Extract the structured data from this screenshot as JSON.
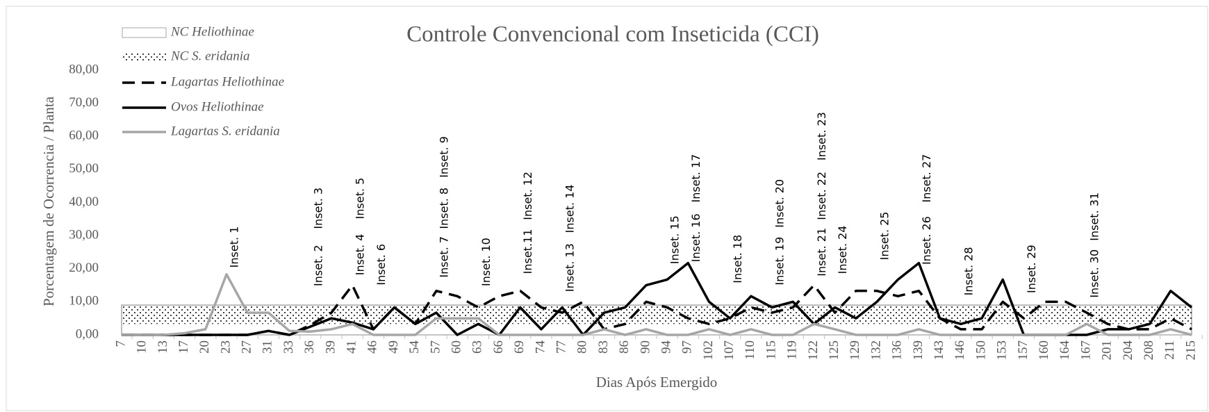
{
  "chart_data": {
    "type": "line",
    "title": "Controle Convencional com Inseticida (CCI)",
    "x_label": "Dias Após Emergido",
    "y_label": "Porcentagem de Ocorrencia / Planta",
    "categories": [
      7,
      10,
      13,
      17,
      20,
      23,
      27,
      31,
      33,
      36,
      39,
      41,
      46,
      49,
      54,
      57,
      60,
      63,
      66,
      69,
      74,
      77,
      80,
      83,
      86,
      90,
      94,
      97,
      102,
      107,
      110,
      115,
      119,
      122,
      125,
      129,
      132,
      136,
      139,
      143,
      146,
      150,
      153,
      157,
      160,
      164,
      167,
      201,
      204,
      208,
      211,
      215
    ],
    "ylim": [
      0,
      80
    ],
    "yticks": [
      {
        "value": 0,
        "label": "0,00"
      },
      {
        "value": 10,
        "label": "10,00"
      },
      {
        "value": 20,
        "label": "20,00"
      },
      {
        "value": 30,
        "label": "30,00"
      },
      {
        "value": 40,
        "label": "40,00"
      },
      {
        "value": 50,
        "label": "50,00"
      },
      {
        "value": 60,
        "label": "60,00"
      },
      {
        "value": 70,
        "label": "70,00"
      },
      {
        "value": 80,
        "label": "80,00"
      }
    ],
    "grid": false,
    "bands": [
      {
        "name": "NC Heliothinae",
        "range": [
          0,
          9
        ],
        "color": "#a6a6a6",
        "pattern": "none"
      },
      {
        "name": "NC S. eridania",
        "range": [
          3.3,
          9
        ],
        "color": "#000000",
        "pattern": "dots"
      }
    ],
    "series": [
      {
        "name": "Lagartas Heliothinae",
        "color": "#000000",
        "dash": "dashed",
        "values": [
          0,
          0,
          0,
          0,
          0,
          0,
          0,
          1.2,
          0,
          3,
          6.7,
          15,
          1.7,
          8.3,
          3.3,
          13.3,
          11.7,
          8.3,
          11.7,
          13.3,
          8.3,
          6.7,
          10,
          1.7,
          3.3,
          10,
          8.3,
          5,
          3.3,
          5,
          8.3,
          6.7,
          8.3,
          15,
          6.7,
          13.3,
          13.3,
          11.7,
          13.3,
          5,
          1.7,
          1.7,
          10,
          5,
          10,
          10,
          6.7,
          3.3,
          1.7,
          1.7,
          5,
          1.7
        ]
      },
      {
        "name": "Ovos Heliothinae",
        "color": "#000000",
        "dash": "solid",
        "values": [
          0,
          0,
          0,
          0,
          0,
          0,
          0,
          1.2,
          0,
          2.5,
          5,
          3.7,
          1.7,
          8.3,
          3.3,
          6.7,
          0,
          3.3,
          0,
          8.3,
          1.7,
          8.3,
          0,
          6.7,
          8.3,
          15,
          16.7,
          21.7,
          10,
          5,
          11.7,
          8.3,
          10,
          3.3,
          8.3,
          5,
          10,
          16.7,
          21.7,
          5,
          3.3,
          5,
          16.7,
          0,
          0,
          0,
          0,
          1.7,
          1.7,
          3.3,
          13.3,
          8.3
        ]
      },
      {
        "name": "Lagartas S. eridania",
        "color": "#a6a6a6",
        "dash": "solid",
        "values": [
          0,
          0,
          0,
          0.5,
          1.7,
          18.3,
          6.7,
          6.7,
          1.2,
          1,
          1.7,
          3.3,
          0,
          0,
          0,
          5,
          5,
          5,
          0,
          0,
          0,
          0,
          0,
          1.7,
          0,
          1.7,
          0,
          0,
          1.7,
          0,
          1.7,
          0,
          0,
          3.3,
          1.7,
          0,
          0,
          0,
          1.7,
          0,
          0,
          0,
          0,
          0,
          0,
          0,
          3.3,
          0,
          0,
          0,
          1.7,
          0
        ]
      }
    ],
    "annotations": [
      {
        "text": "Inset. 1",
        "x": 23,
        "y": 20.3
      },
      {
        "text": "Inset. 2",
        "x": 36,
        "y": 14.7
      },
      {
        "text": "Inset. 3",
        "x": 36,
        "y": 32
      },
      {
        "text": "Inset. 4",
        "x": 41,
        "y": 18
      },
      {
        "text": "Inset. 5",
        "x": 41,
        "y": 35
      },
      {
        "text": "Inset. 6",
        "x": 46,
        "y": 15
      },
      {
        "text": "Inset. 7",
        "x": 57,
        "y": 17.3
      },
      {
        "text": "Inset. 8",
        "x": 57,
        "y": 32
      },
      {
        "text": "Inset. 9",
        "x": 57,
        "y": 47.5
      },
      {
        "text": "Inset. 10",
        "x": 63,
        "y": 14.7
      },
      {
        "text": "Inset.11",
        "x": 69,
        "y": 18.4
      },
      {
        "text": "Inset. 12",
        "x": 69,
        "y": 34.7
      },
      {
        "text": "Inset. 13",
        "x": 77,
        "y": 13
      },
      {
        "text": "Inset. 14",
        "x": 77,
        "y": 30.8
      },
      {
        "text": "Inset. 15",
        "x": 94,
        "y": 21.4
      },
      {
        "text": "Inset. 16",
        "x": 97,
        "y": 22
      },
      {
        "text": "Inset. 17",
        "x": 97,
        "y": 40
      },
      {
        "text": "Inset. 18",
        "x": 107,
        "y": 15.6
      },
      {
        "text": "Inset. 19",
        "x": 115,
        "y": 15
      },
      {
        "text": "Inset. 20",
        "x": 115,
        "y": 32.4
      },
      {
        "text": "Inset. 21",
        "x": 122,
        "y": 17.7
      },
      {
        "text": "Inset. 22",
        "x": 122,
        "y": 34.7
      },
      {
        "text": "Inset. 23",
        "x": 122,
        "y": 52.7
      },
      {
        "text": "Inset. 24",
        "x": 125,
        "y": 18.4
      },
      {
        "text": "Inset. 25",
        "x": 132,
        "y": 22.6
      },
      {
        "text": "Inset. 26",
        "x": 139,
        "y": 21.2
      },
      {
        "text": "Inset. 27",
        "x": 139,
        "y": 40
      },
      {
        "text": "Inset. 28",
        "x": 146,
        "y": 11.9
      },
      {
        "text": "Inset. 29",
        "x": 157,
        "y": 12.6
      },
      {
        "text": "Inset. 30",
        "x": 167,
        "y": 11.2
      },
      {
        "text": "Inset. 31",
        "x": 167,
        "y": 28.4
      }
    ]
  }
}
